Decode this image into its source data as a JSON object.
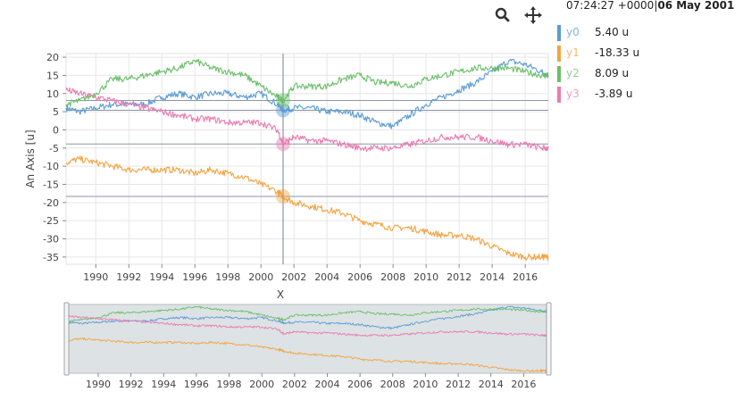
{
  "header": {
    "timestamp": "07:24:27 +0000",
    "separator": "|",
    "date": "06 May 2001"
  },
  "toolbar": {
    "zoom_icon": "magnifier-icon",
    "pan_icon": "move-arrows-icon"
  },
  "colors": {
    "y0": "#5b9bd5",
    "y1": "#f4a340",
    "y2": "#6abf69",
    "y3": "#ec7ab0",
    "crosshair": "#8898a8",
    "grid": "#e6e6e6",
    "navigator_bg": "#dde2e4"
  },
  "legend": [
    {
      "name": "y0",
      "value": "5.40 u",
      "color": "#5b9bd5"
    },
    {
      "name": "y1",
      "value": "-18.33 u",
      "color": "#f4a340"
    },
    {
      "name": "y2",
      "value": "8.09 u",
      "color": "#6abf69"
    },
    {
      "name": "y3",
      "value": "-3.89 u",
      "color": "#ec7ab0"
    }
  ],
  "chart_data": {
    "type": "line",
    "title": "",
    "xlabel": "X",
    "ylabel": "An Axis [u]",
    "xlim": [
      1988.2,
      2017.4
    ],
    "ylim": [
      -37,
      21
    ],
    "x_ticks": [
      "1990",
      "1992",
      "1994",
      "1996",
      "1998",
      "2000",
      "2002",
      "2004",
      "2006",
      "2008",
      "2010",
      "2012",
      "2014",
      "2016"
    ],
    "y_ticks": [
      "20",
      "15",
      "10",
      "5",
      "0",
      "-5",
      "-10",
      "-15",
      "-20",
      "-25",
      "-30",
      "-35"
    ],
    "grid": true,
    "crosshair_x": 2001.34,
    "x": [
      1988.2,
      1989,
      1990,
      1991,
      1992,
      1993,
      1994,
      1995,
      1996,
      1997,
      1998,
      1999,
      2000,
      2001,
      2001.34,
      2002,
      2003,
      2004,
      2005,
      2006,
      2007,
      2008,
      2009,
      2010,
      2011,
      2012,
      2013,
      2014,
      2015,
      2016,
      2017,
      2017.4
    ],
    "series": [
      {
        "name": "y0",
        "values": [
          6,
          5,
          6,
          7,
          7,
          7,
          9,
          10,
          9,
          10,
          10,
          9,
          10,
          7,
          5.4,
          6,
          6,
          5,
          5,
          4,
          2,
          1,
          4,
          7,
          9,
          11,
          13,
          16,
          19,
          18,
          16,
          15
        ]
      },
      {
        "name": "y1",
        "values": [
          -9,
          -8,
          -9,
          -10,
          -11,
          -11,
          -11,
          -11,
          -12,
          -11,
          -12,
          -13,
          -15,
          -17,
          -18.33,
          -20,
          -21,
          -22,
          -23,
          -25,
          -26,
          -27,
          -27,
          -28,
          -29,
          -29,
          -30,
          -32,
          -34,
          -35,
          -35,
          -35
        ]
      },
      {
        "name": "y2",
        "values": [
          7,
          8,
          10,
          14,
          14,
          15,
          16,
          17,
          19,
          17,
          16,
          15,
          12,
          9,
          8.09,
          12,
          12,
          12,
          14,
          15,
          13,
          13,
          12,
          14,
          15,
          16,
          17,
          17,
          17,
          16,
          15,
          15
        ]
      },
      {
        "name": "y3",
        "values": [
          11,
          10,
          9,
          8,
          7,
          6,
          5,
          4,
          3,
          3,
          2,
          2,
          2,
          0,
          -3.89,
          -2,
          -3,
          -3,
          -4,
          -5,
          -5,
          -5,
          -4,
          -3,
          -2,
          -2,
          -2,
          -3,
          -4,
          -4,
          -5,
          -5
        ]
      }
    ],
    "navigator": {
      "x_ticks": [
        "1990",
        "1992",
        "1994",
        "1996",
        "1998",
        "2000",
        "2002",
        "2004",
        "2006",
        "2008",
        "2010",
        "2012",
        "2014",
        "2016"
      ]
    }
  }
}
